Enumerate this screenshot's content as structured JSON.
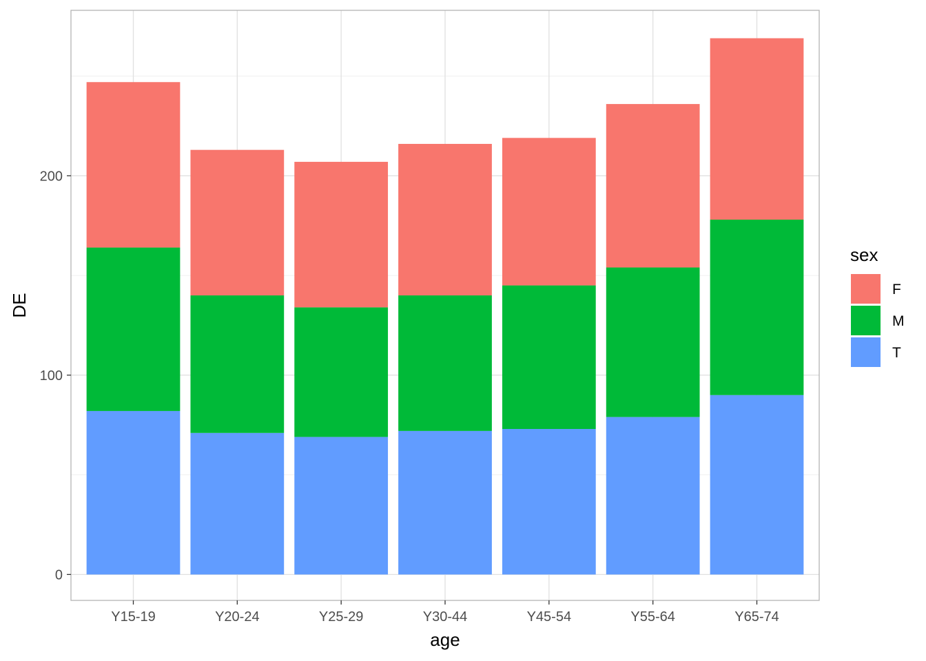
{
  "chart_data": {
    "type": "bar",
    "stacked": true,
    "categories": [
      "Y15-19",
      "Y20-24",
      "Y25-29",
      "Y30-44",
      "Y45-54",
      "Y55-64",
      "Y65-74"
    ],
    "series": [
      {
        "name": "T",
        "color": "#619CFF",
        "values": [
          82,
          71,
          69,
          72,
          73,
          79,
          90
        ]
      },
      {
        "name": "M",
        "color": "#00BA38",
        "values": [
          82,
          69,
          65,
          68,
          72,
          75,
          88
        ]
      },
      {
        "name": "F",
        "color": "#F8766D",
        "values": [
          83,
          73,
          73,
          76,
          74,
          82,
          91
        ]
      }
    ],
    "xlabel": "age",
    "ylabel": "DE",
    "ylim": [
      -13,
      283
    ],
    "yticks": [
      0,
      100,
      200
    ],
    "grid": true,
    "legend": {
      "title": "sex",
      "position": "right",
      "entries": [
        "F",
        "M",
        "T"
      ]
    }
  }
}
